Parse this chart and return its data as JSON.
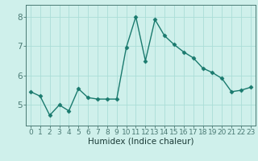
{
  "x": [
    0,
    1,
    2,
    3,
    4,
    5,
    6,
    7,
    8,
    9,
    10,
    11,
    12,
    13,
    14,
    15,
    16,
    17,
    18,
    19,
    20,
    21,
    22,
    23
  ],
  "y": [
    5.45,
    5.3,
    4.65,
    5.0,
    4.8,
    5.55,
    5.25,
    5.2,
    5.2,
    5.2,
    6.95,
    8.0,
    6.5,
    7.9,
    7.35,
    7.05,
    6.8,
    6.6,
    6.25,
    6.1,
    5.9,
    5.45,
    5.5,
    5.6
  ],
  "xlabel": "Humidex (Indice chaleur)",
  "ylim": [
    4.3,
    8.4
  ],
  "xlim": [
    -0.5,
    23.5
  ],
  "yticks": [
    5,
    6,
    7,
    8
  ],
  "xticks": [
    0,
    1,
    2,
    3,
    4,
    5,
    6,
    7,
    8,
    9,
    10,
    11,
    12,
    13,
    14,
    15,
    16,
    17,
    18,
    19,
    20,
    21,
    22,
    23
  ],
  "line_color": "#1a7a6e",
  "marker": "D",
  "marker_size": 2.5,
  "bg_color": "#cff0eb",
  "grid_color": "#aaddd7",
  "axis_color": "#4a7a74",
  "tick_label_color": "#1a4a46",
  "xlabel_color": "#1a3a36",
  "font_size_tick": 6.5,
  "font_size_xlabel": 7.5,
  "linewidth": 1.0
}
